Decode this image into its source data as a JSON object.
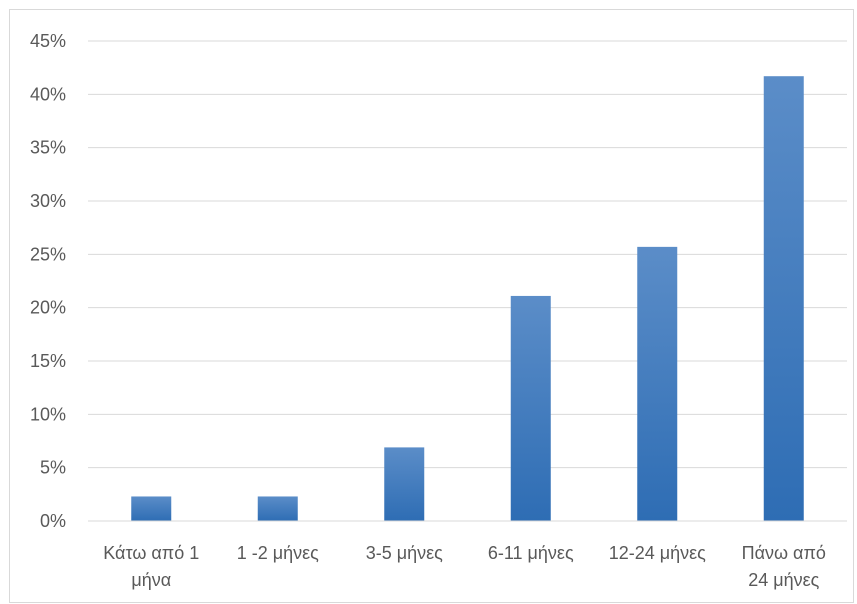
{
  "chart_data": {
    "type": "bar",
    "title": "",
    "xlabel": "",
    "ylabel": "",
    "categories": [
      [
        "Κάτω από 1",
        "μήνα"
      ],
      [
        "1 -2 μήνες"
      ],
      [
        "3-5 μήνες"
      ],
      [
        "6-11 μήνες"
      ],
      [
        "12-24 μήνες"
      ],
      [
        "Πάνω από",
        "24 μήνες"
      ]
    ],
    "values": [
      0.023,
      0.023,
      0.069,
      0.211,
      0.257,
      0.417
    ],
    "ylim": [
      0,
      0.45
    ],
    "yticks": [
      0,
      0.05,
      0.1,
      0.15,
      0.2,
      0.25,
      0.3,
      0.35,
      0.4,
      0.45
    ],
    "ytick_labels": [
      "0%",
      "5%",
      "10%",
      "15%",
      "20%",
      "25%",
      "30%",
      "35%",
      "40%",
      "45%"
    ],
    "grid": true,
    "legend": "none",
    "colors": {
      "bar_top": "#5b8dc8",
      "bar_bottom": "#2e6db4",
      "grid": "#d9d9d9",
      "axis": "#d9d9d9",
      "text": "#595959"
    }
  }
}
